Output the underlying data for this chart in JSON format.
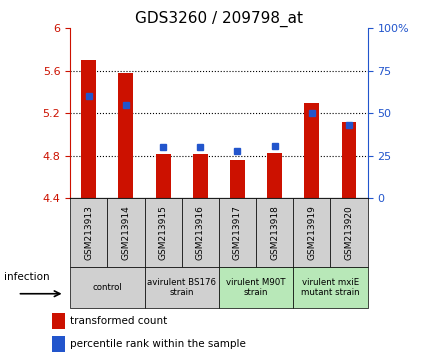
{
  "title": "GDS3260 / 209798_at",
  "samples": [
    "GSM213913",
    "GSM213914",
    "GSM213915",
    "GSM213916",
    "GSM213917",
    "GSM213918",
    "GSM213919",
    "GSM213920"
  ],
  "red_values": [
    5.7,
    5.58,
    4.82,
    4.82,
    4.76,
    4.83,
    5.3,
    5.12
  ],
  "blue_pct": [
    60,
    55,
    30,
    30,
    28,
    31,
    50,
    43
  ],
  "ylim_left": [
    4.4,
    6.0
  ],
  "ylim_right": [
    0,
    100
  ],
  "yticks_left": [
    4.4,
    4.8,
    5.2,
    5.6,
    6.0
  ],
  "ytick_labels_left": [
    "4.4",
    "4.8",
    "5.2",
    "5.6",
    "6"
  ],
  "yticks_right": [
    0,
    25,
    50,
    75,
    100
  ],
  "ytick_labels_right": [
    "0",
    "25",
    "50",
    "75",
    "100%"
  ],
  "bar_color": "#cc1100",
  "dot_color": "#2255cc",
  "groups": [
    {
      "label": "control",
      "start": 0,
      "end": 2,
      "color": "#d0d0d0"
    },
    {
      "label": "avirulent BS176\nstrain",
      "start": 2,
      "end": 4,
      "color": "#d0d0d0"
    },
    {
      "label": "virulent M90T\nstrain",
      "start": 4,
      "end": 6,
      "color": "#b8e8b8"
    },
    {
      "label": "virulent mxiE\nmutant strain",
      "start": 6,
      "end": 8,
      "color": "#b8e8b8"
    }
  ],
  "sample_box_color": "#d0d0d0",
  "infection_label": "infection",
  "left_label_color": "#cc1100",
  "right_label_color": "#2255cc",
  "legend_red_label": "transformed count",
  "legend_blue_label": "percentile rank within the sample"
}
